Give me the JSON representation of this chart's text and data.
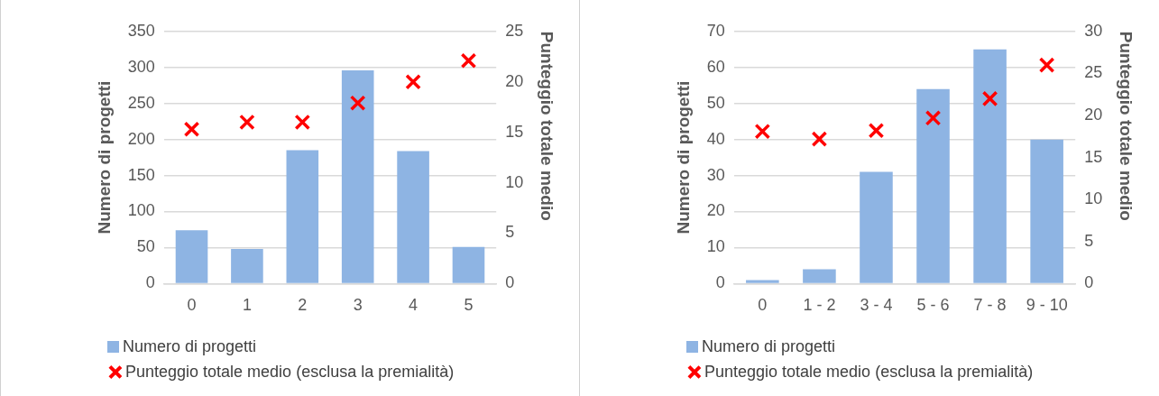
{
  "chart_data": [
    {
      "type": "bar",
      "categories": [
        "0",
        "1",
        "2",
        "3",
        "4",
        "5"
      ],
      "ylabel": "Numero di progetti",
      "y2label": "Punteggio totale medio",
      "ylim": [
        0,
        350
      ],
      "yticks": [
        0,
        50,
        100,
        150,
        200,
        250,
        300,
        350
      ],
      "y2lim": [
        0,
        25
      ],
      "y2ticks": [
        0,
        5,
        10,
        15,
        20,
        25
      ],
      "grid": "y",
      "legend": "bottom left",
      "series": [
        {
          "name": "Numero di progetti",
          "color": "#8eb4e3",
          "values": [
            74,
            48,
            185,
            296,
            184,
            51
          ]
        },
        {
          "name": "Punteggio totale medio (esclusa la premialità)",
          "type": "scatter",
          "axis": "y2",
          "marker": "cross",
          "color": "#ff0000",
          "values": [
            15.3,
            16.0,
            16.0,
            17.9,
            20.0,
            22.1
          ]
        }
      ]
    },
    {
      "type": "bar",
      "categories": [
        "0",
        "1 - 2",
        "3 - 4",
        "5 - 6",
        "7 - 8",
        "9 - 10"
      ],
      "ylabel": "Numero di progetti",
      "y2label": "Punteggio totale medio",
      "ylim": [
        0,
        70
      ],
      "yticks": [
        0,
        10,
        20,
        30,
        40,
        50,
        60,
        70
      ],
      "y2lim": [
        0,
        30
      ],
      "y2ticks": [
        0,
        5,
        10,
        15,
        20,
        25,
        30
      ],
      "grid": "y",
      "legend": "bottom left",
      "series": [
        {
          "name": "Numero di progetti",
          "color": "#8eb4e3",
          "values": [
            1,
            4,
            31,
            54,
            65,
            40
          ]
        },
        {
          "name": "Punteggio totale medio (esclusa la premialità)",
          "type": "scatter",
          "axis": "y2",
          "marker": "cross",
          "color": "#ff0000",
          "values": [
            18.1,
            17.2,
            18.2,
            19.7,
            22.0,
            26.0
          ]
        }
      ]
    }
  ]
}
